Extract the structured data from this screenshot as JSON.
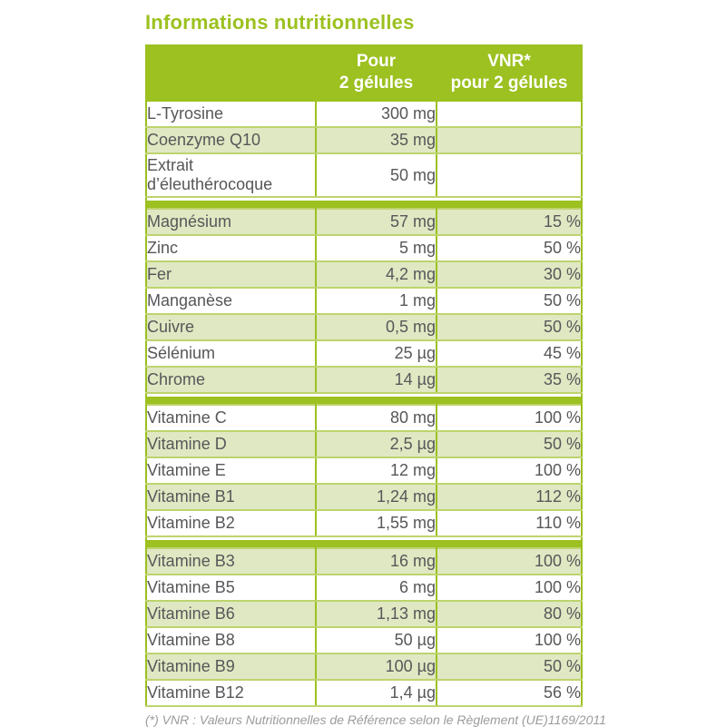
{
  "title": "Informations nutritionnelles",
  "table": {
    "header": {
      "col2_line1": "Pour",
      "col2_line2": "2 gélules",
      "col3_line1": "VNR*",
      "col3_line2": "pour 2 gélules"
    },
    "sections": [
      {
        "rows": [
          {
            "label": "L-Tyrosine",
            "amount": "300 mg",
            "vnr": ""
          },
          {
            "label": "Coenzyme Q10",
            "amount": "35 mg",
            "vnr": ""
          },
          {
            "label": "Extrait d’éleuthérocoque",
            "amount": "50 mg",
            "vnr": ""
          }
        ]
      },
      {
        "rows": [
          {
            "label": "Magnésium",
            "amount": "57 mg",
            "vnr": "15 %"
          },
          {
            "label": "Zinc",
            "amount": "5 mg",
            "vnr": "50 %"
          },
          {
            "label": "Fer",
            "amount": "4,2 mg",
            "vnr": "30 %"
          },
          {
            "label": "Manganèse",
            "amount": "1 mg",
            "vnr": "50 %"
          },
          {
            "label": "Cuivre",
            "amount": "0,5 mg",
            "vnr": "50 %"
          },
          {
            "label": "Sélénium",
            "amount": "25 µg",
            "vnr": "45 %"
          },
          {
            "label": "Chrome",
            "amount": "14 µg",
            "vnr": "35 %"
          }
        ]
      },
      {
        "rows": [
          {
            "label": "Vitamine C",
            "amount": "80 mg",
            "vnr": "100 %"
          },
          {
            "label": "Vitamine D",
            "amount": "2,5 µg",
            "vnr": "50 %"
          },
          {
            "label": "Vitamine E",
            "amount": "12 mg",
            "vnr": "100 %"
          },
          {
            "label": "Vitamine B1",
            "amount": "1,24 mg",
            "vnr": "112 %"
          },
          {
            "label": "Vitamine B2",
            "amount": "1,55 mg",
            "vnr": "110 %"
          }
        ]
      },
      {
        "rows": [
          {
            "label": "Vitamine B3",
            "amount": "16 mg",
            "vnr": "100 %"
          },
          {
            "label": "Vitamine B5",
            "amount": "6 mg",
            "vnr": "100 %"
          },
          {
            "label": "Vitamine B6",
            "amount": "1,13 mg",
            "vnr": "80 %"
          },
          {
            "label": "Vitamine B8",
            "amount": "50 µg",
            "vnr": "100 %"
          },
          {
            "label": "Vitamine B9",
            "amount": "100 µg",
            "vnr": "50 %"
          },
          {
            "label": "Vitamine B12",
            "amount": "1,4 µg",
            "vnr": "56 %"
          }
        ]
      }
    ]
  },
  "footnote": "(*) VNR : Valeurs Nutritionnelles de Référence selon le Règlement (UE)1169/2011",
  "colors": {
    "green": "#9cc120",
    "row_shade": "#dfe8c2",
    "row_border": "#bdd46e",
    "text": "#57575a",
    "footnote": "#9b9b9d"
  }
}
